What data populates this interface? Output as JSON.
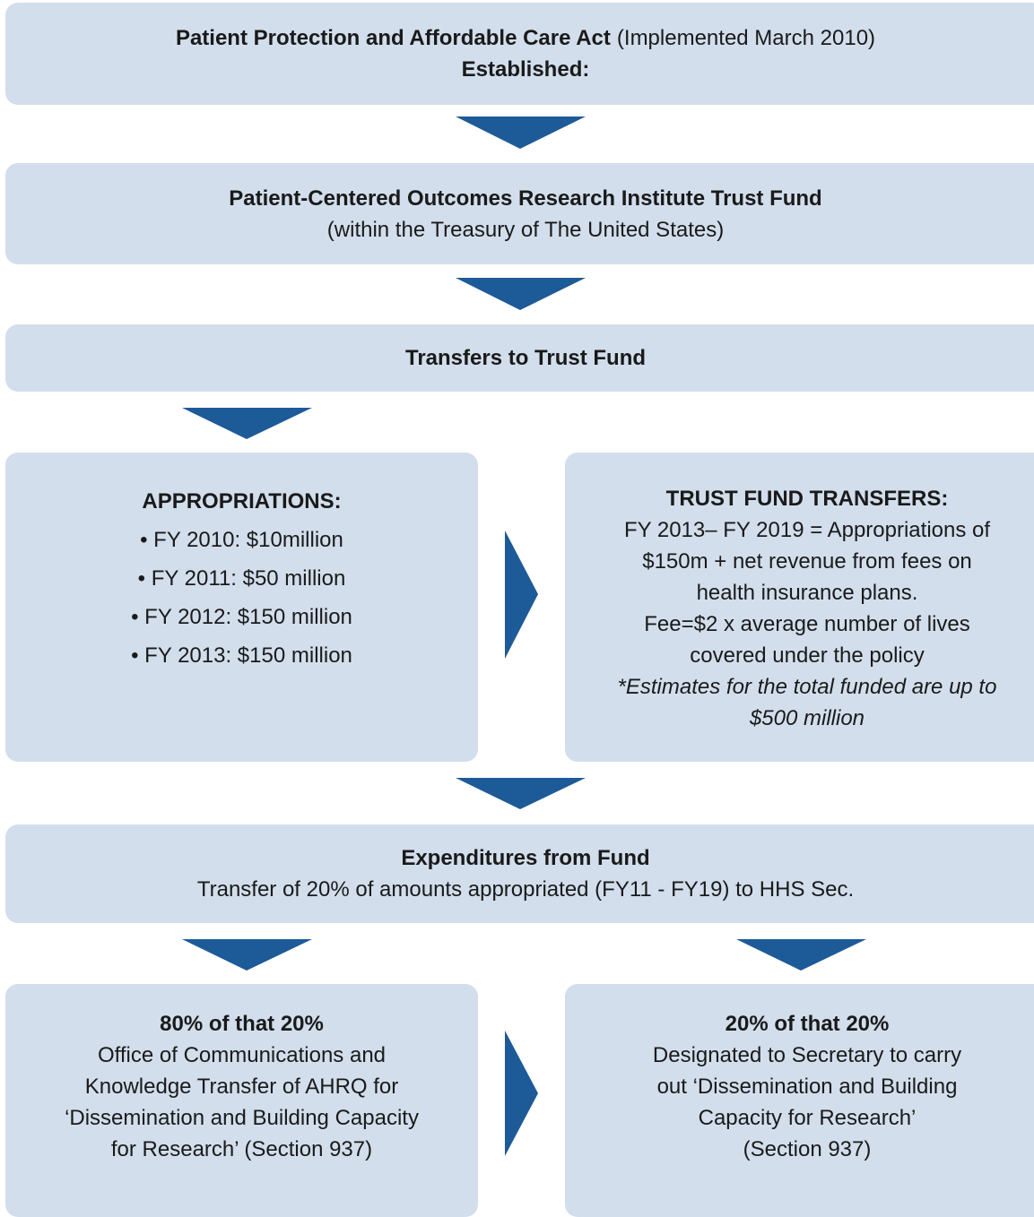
{
  "boxes": [
    {
      "lines": [
        [
          {
            "text": "Patient Protection and Affordable Care Act",
            "style": "bold"
          },
          {
            "text": "(Implemented March 2010)",
            "style": "normal"
          }
        ],
        [
          {
            "text": "Established:",
            "style": "bold"
          }
        ]
      ]
    },
    {
      "lines": [
        [
          {
            "text": "Patient-Centered Outcomes Research Institute Trust Fund",
            "style": "bold"
          }
        ],
        [
          {
            "text": "(within the Treasury of The United States)",
            "style": "normal"
          }
        ]
      ]
    },
    {
      "lines": [
        [
          {
            "text": "Transfers to Trust Fund",
            "style": "bold"
          }
        ]
      ]
    },
    {
      "lines": [
        [
          {
            "text": "APPROPRIATIONS:",
            "style": "bold"
          }
        ],
        [
          {
            "text": "• FY 2010: $10million",
            "style": "normal"
          }
        ],
        [
          {
            "text": "• FY 2011: $50 million",
            "style": "normal"
          }
        ],
        [
          {
            "text": "• FY 2012: $150 million",
            "style": "normal"
          }
        ],
        [
          {
            "text": "• FY 2013: $150 million",
            "style": "normal"
          }
        ]
      ]
    },
    {
      "lines": [
        [
          {
            "text": "TRUST FUND TRANSFERS:",
            "style": "bold"
          }
        ],
        [
          {
            "text": "FY 2013– FY 2019 = Appropriations of",
            "style": "normal"
          }
        ],
        [
          {
            "text": "$150m + net revenue from fees on",
            "style": "normal"
          }
        ],
        [
          {
            "text": "health insurance plans.",
            "style": "normal"
          }
        ],
        [
          {
            "text": "Fee=$2 x average number of lives",
            "style": "normal"
          }
        ],
        [
          {
            "text": "covered under the policy",
            "style": "normal"
          }
        ],
        [
          {
            "text": "*Estimates for the total funded are up to",
            "style": "italic"
          }
        ],
        [
          {
            "text": "$500 million",
            "style": "italic"
          }
        ]
      ]
    },
    {
      "lines": [
        [
          {
            "text": "Expenditures from Fund",
            "style": "bold"
          }
        ],
        [
          {
            "text": "Transfer of 20% of amounts appropriated (FY11 - FY19) to HHS Sec.",
            "style": "normal"
          }
        ]
      ]
    },
    {
      "lines": [
        [
          {
            "text": "80% of that 20%",
            "style": "bold"
          }
        ],
        [
          {
            "text": "Office of Communications and",
            "style": "normal"
          }
        ],
        [
          {
            "text": "Knowledge Transfer of AHRQ for",
            "style": "normal"
          }
        ],
        [
          {
            "text": "‘Dissemination and Building Capacity",
            "style": "normal"
          }
        ],
        [
          {
            "text": "for Research’ (Section 937)",
            "style": "normal"
          }
        ]
      ]
    },
    {
      "lines": [
        [
          {
            "text": "20% of that 20%",
            "style": "bold"
          }
        ],
        [
          {
            "text": "Designated to Secretary to carry",
            "style": "normal"
          }
        ],
        [
          {
            "text": "out ‘Dissemination and Building",
            "style": "normal"
          }
        ],
        [
          {
            "text": "Capacity for Research’",
            "style": "normal"
          }
        ],
        [
          {
            "text": "(Section 937)",
            "style": "normal"
          }
        ]
      ]
    }
  ]
}
